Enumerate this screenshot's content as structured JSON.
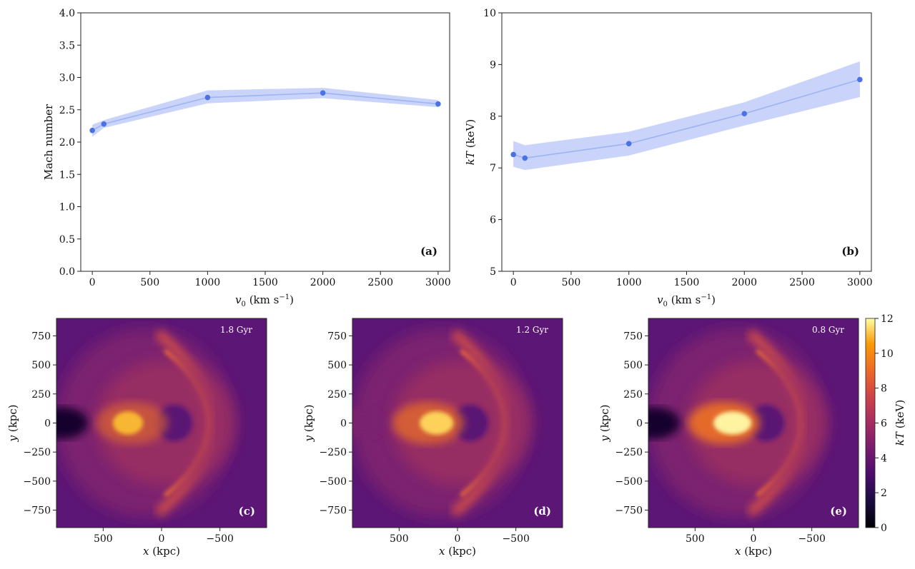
{
  "chart_data": [
    {
      "panel": "(a)",
      "type": "line",
      "xlabel_var": "v",
      "xlabel_sub": "0",
      "xlabel_unit": " (km s",
      "xlabel_exp": "−1",
      "xlabel_close": ")",
      "ylabel": "Mach number",
      "xlim": [
        -100,
        3100
      ],
      "ylim": [
        0.0,
        4.0
      ],
      "xticks": [
        0,
        500,
        1000,
        1500,
        2000,
        2500,
        3000
      ],
      "yticks": [
        "0.0",
        "0.5",
        "1.0",
        "1.5",
        "2.0",
        "2.5",
        "3.0",
        "3.5",
        "4.0"
      ],
      "x": [
        0,
        100,
        1000,
        2000,
        3000
      ],
      "y": [
        2.18,
        2.28,
        2.69,
        2.76,
        2.59
      ],
      "band_lower": [
        2.08,
        2.22,
        2.6,
        2.68,
        2.54
      ],
      "band_upper": [
        2.27,
        2.34,
        2.8,
        2.84,
        2.65
      ]
    },
    {
      "panel": "(b)",
      "type": "line",
      "xlabel_var": "v",
      "xlabel_sub": "0",
      "xlabel_unit": " (km s",
      "xlabel_exp": "−1",
      "xlabel_close": ")",
      "ylabel_var": "kT",
      "ylabel_unit": " (keV)",
      "xlim": [
        -100,
        3100
      ],
      "ylim": [
        5,
        10
      ],
      "xticks": [
        0,
        500,
        1000,
        1500,
        2000,
        2500,
        3000
      ],
      "yticks": [
        "5",
        "6",
        "7",
        "8",
        "9",
        "10"
      ],
      "x": [
        0,
        100,
        1000,
        2000,
        3000
      ],
      "y": [
        7.26,
        7.19,
        7.47,
        8.05,
        8.71
      ],
      "band_lower": [
        7.02,
        6.96,
        7.24,
        7.82,
        8.37
      ],
      "band_upper": [
        7.52,
        7.44,
        7.7,
        8.27,
        9.06
      ]
    },
    {
      "panel": "(c)",
      "type": "heatmap",
      "time_label": "1.8 Gyr",
      "xlabel_var": "x",
      "xlabel_unit": " (kpc)",
      "ylabel_var": "y",
      "ylabel_unit": " (kpc)",
      "xticks": [
        "500",
        "0",
        "−500"
      ],
      "yticks": [
        "750",
        "500",
        "250",
        "0",
        "−250",
        "−500",
        "−750"
      ]
    },
    {
      "panel": "(d)",
      "type": "heatmap",
      "time_label": "1.2 Gyr",
      "xlabel_var": "x",
      "xlabel_unit": " (kpc)",
      "ylabel_var": "y",
      "ylabel_unit": " (kpc)",
      "xticks": [
        "500",
        "0",
        "−500"
      ],
      "yticks": [
        "750",
        "500",
        "250",
        "0",
        "−250",
        "−500",
        "−750"
      ]
    },
    {
      "panel": "(e)",
      "type": "heatmap",
      "time_label": "0.8 Gyr",
      "xlabel_var": "x",
      "xlabel_unit": " (kpc)",
      "ylabel_var": "y",
      "ylabel_unit": " (kpc)",
      "xticks": [
        "500",
        "0",
        "−500"
      ],
      "yticks": [
        "750",
        "500",
        "250",
        "0",
        "−250",
        "−500",
        "−750"
      ]
    }
  ],
  "colorbar": {
    "label_var": "kT",
    "label_unit": " (keV)",
    "ticks": [
      "0",
      "2",
      "4",
      "6",
      "8",
      "10",
      "12"
    ],
    "range": [
      0,
      12
    ]
  },
  "colors": {
    "line": "#9db4f3",
    "marker": "#4a72e6",
    "band": "#c7d2fb",
    "axis": "#222222"
  }
}
